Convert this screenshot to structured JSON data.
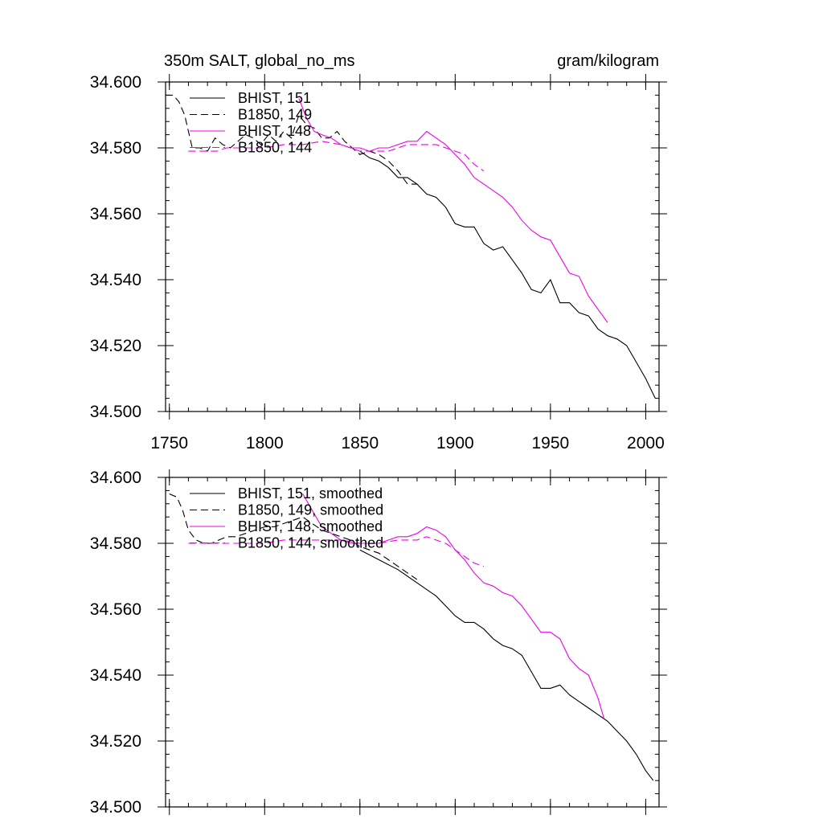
{
  "title_left": "350m SALT, global_no_ms",
  "title_right": "gram/kilogram",
  "colors": {
    "black": "#000000",
    "magenta": "#ee00ee"
  },
  "chart_data": [
    {
      "type": "line",
      "panel": "raw",
      "xlim": [
        1748,
        2007
      ],
      "ylim": [
        34.5,
        34.6
      ],
      "x_ticks": [
        1750,
        1800,
        1850,
        1900,
        1950,
        2000
      ],
      "x_tick_labels": [
        "1750",
        "1800",
        "1850",
        "1900",
        "1950",
        "2000"
      ],
      "y_ticks": [
        34.5,
        34.52,
        34.54,
        34.56,
        34.58,
        34.6
      ],
      "y_tick_labels": [
        "34.500",
        "34.520",
        "34.540",
        "34.560",
        "34.580",
        "34.600"
      ],
      "legend_position": "top-left",
      "series": [
        {
          "name": "BHIST, 151",
          "color": "#000000",
          "dash": "solid",
          "x": [
            1850,
            1855,
            1860,
            1865,
            1870,
            1875,
            1880,
            1885,
            1890,
            1895,
            1900,
            1905,
            1910,
            1915,
            1920,
            1925,
            1930,
            1935,
            1940,
            1945,
            1950,
            1955,
            1960,
            1965,
            1970,
            1975,
            1980,
            1985,
            1990,
            1995,
            2000,
            2005
          ],
          "y": [
            34.579,
            34.577,
            34.576,
            34.574,
            34.571,
            34.571,
            34.569,
            34.566,
            34.565,
            34.562,
            34.557,
            34.556,
            34.556,
            34.551,
            34.549,
            34.55,
            34.546,
            34.542,
            34.537,
            34.536,
            34.54,
            34.533,
            34.533,
            34.53,
            34.529,
            34.525,
            34.523,
            34.522,
            34.52,
            34.515,
            34.51,
            34.504
          ]
        },
        {
          "name": "B1850, 149",
          "color": "#000000",
          "dash": "dashed",
          "x": [
            1748,
            1752,
            1755,
            1758,
            1762,
            1766,
            1770,
            1774,
            1778,
            1782,
            1786,
            1790,
            1794,
            1798,
            1802,
            1806,
            1810,
            1814,
            1818,
            1822,
            1826,
            1830,
            1834,
            1838,
            1842,
            1846,
            1850,
            1855,
            1860,
            1865,
            1870,
            1875,
            1880
          ],
          "y": [
            34.596,
            34.596,
            34.594,
            34.59,
            34.58,
            34.58,
            34.579,
            34.583,
            34.581,
            34.58,
            34.582,
            34.584,
            34.583,
            34.581,
            34.584,
            34.582,
            34.585,
            34.583,
            34.59,
            34.587,
            34.586,
            34.583,
            34.583,
            34.585,
            34.582,
            34.58,
            34.578,
            34.579,
            34.578,
            34.576,
            34.573,
            34.569,
            34.569
          ]
        },
        {
          "name": "BHIST, 148",
          "color": "#ee00ee",
          "dash": "solid",
          "x": [
            1818,
            1822,
            1826,
            1830,
            1835,
            1840,
            1845,
            1850,
            1855,
            1860,
            1865,
            1870,
            1875,
            1880,
            1885,
            1890,
            1895,
            1900,
            1905,
            1910,
            1915,
            1920,
            1925,
            1930,
            1935,
            1940,
            1945,
            1950,
            1955,
            1960,
            1965,
            1970,
            1975,
            1980
          ],
          "y": [
            34.595,
            34.589,
            34.585,
            34.584,
            34.583,
            34.581,
            34.58,
            34.58,
            34.579,
            34.58,
            34.58,
            34.581,
            34.582,
            34.582,
            34.585,
            34.583,
            34.581,
            34.578,
            34.575,
            34.571,
            34.569,
            34.567,
            34.565,
            34.562,
            34.558,
            34.555,
            34.553,
            34.552,
            34.547,
            34.542,
            34.541,
            34.535,
            34.531,
            34.527
          ]
        },
        {
          "name": "B1850, 144",
          "color": "#ee00ee",
          "dash": "dashed",
          "x": [
            1760,
            1765,
            1770,
            1775,
            1780,
            1785,
            1790,
            1800,
            1810,
            1820,
            1830,
            1840,
            1845,
            1850,
            1855,
            1860,
            1865,
            1870,
            1875,
            1880,
            1885,
            1890,
            1895,
            1900,
            1905,
            1910,
            1915
          ],
          "y": [
            34.579,
            34.579,
            34.579,
            34.579,
            34.58,
            34.58,
            34.58,
            34.58,
            34.581,
            34.581,
            34.582,
            34.581,
            34.58,
            34.579,
            34.579,
            34.579,
            34.579,
            34.58,
            34.581,
            34.581,
            34.581,
            34.581,
            34.58,
            34.579,
            34.578,
            34.575,
            34.573
          ]
        }
      ]
    },
    {
      "type": "line",
      "panel": "smoothed",
      "xlim": [
        1748,
        2007
      ],
      "ylim": [
        34.5,
        34.6
      ],
      "x_ticks": [
        1750,
        1800,
        1850,
        1900,
        1950,
        2000
      ],
      "y_ticks": [
        34.5,
        34.52,
        34.54,
        34.56,
        34.58,
        34.6
      ],
      "y_tick_labels": [
        "34.500",
        "34.520",
        "34.540",
        "34.560",
        "34.580",
        "34.600"
      ],
      "legend_position": "top-left",
      "series": [
        {
          "name": "BHIST, 151, smoothed",
          "color": "#000000",
          "dash": "solid",
          "x": [
            1850,
            1860,
            1870,
            1880,
            1885,
            1890,
            1895,
            1900,
            1905,
            1910,
            1915,
            1920,
            1925,
            1930,
            1935,
            1940,
            1945,
            1950,
            1955,
            1960,
            1965,
            1970,
            1975,
            1980,
            1985,
            1990,
            1995,
            2000,
            2004
          ],
          "y": [
            34.578,
            34.575,
            34.572,
            34.568,
            34.566,
            34.564,
            34.561,
            34.558,
            34.556,
            34.556,
            34.554,
            34.551,
            34.549,
            34.548,
            34.546,
            34.541,
            34.536,
            34.536,
            34.537,
            34.534,
            34.532,
            34.53,
            34.528,
            34.526,
            34.523,
            34.52,
            34.516,
            34.511,
            34.508
          ]
        },
        {
          "name": "B1850, 149, smoothed",
          "color": "#000000",
          "dash": "dashed",
          "x": [
            1750,
            1754,
            1757,
            1760,
            1764,
            1768,
            1772,
            1776,
            1780,
            1785,
            1790,
            1795,
            1800,
            1805,
            1810,
            1815,
            1820,
            1825,
            1830,
            1835,
            1840,
            1845,
            1850,
            1855,
            1860,
            1865,
            1870,
            1875,
            1880
          ],
          "y": [
            34.595,
            34.594,
            34.59,
            34.584,
            34.581,
            34.58,
            34.58,
            34.581,
            34.582,
            34.582,
            34.583,
            34.584,
            34.585,
            34.585,
            34.586,
            34.587,
            34.588,
            34.586,
            34.584,
            34.583,
            34.582,
            34.581,
            34.579,
            34.578,
            34.577,
            34.575,
            34.573,
            34.571,
            34.569
          ]
        },
        {
          "name": "BHIST, 148, smoothed",
          "color": "#ee00ee",
          "dash": "solid",
          "x": [
            1820,
            1825,
            1830,
            1835,
            1840,
            1845,
            1850,
            1855,
            1860,
            1865,
            1870,
            1875,
            1880,
            1885,
            1890,
            1895,
            1900,
            1905,
            1910,
            1915,
            1920,
            1925,
            1930,
            1935,
            1940,
            1945,
            1950,
            1955,
            1960,
            1965,
            1970,
            1975,
            1978
          ],
          "y": [
            34.595,
            34.59,
            34.585,
            34.583,
            34.581,
            34.58,
            34.58,
            34.58,
            34.58,
            34.581,
            34.582,
            34.582,
            34.583,
            34.585,
            34.584,
            34.582,
            34.578,
            34.575,
            34.571,
            34.568,
            34.567,
            34.565,
            34.564,
            34.561,
            34.557,
            34.553,
            34.553,
            34.551,
            34.545,
            34.542,
            34.54,
            34.533,
            34.527
          ]
        },
        {
          "name": "B1850, 144, smoothed",
          "color": "#ee00ee",
          "dash": "dashed",
          "x": [
            1760,
            1770,
            1780,
            1790,
            1800,
            1810,
            1820,
            1830,
            1840,
            1850,
            1860,
            1870,
            1880,
            1885,
            1890,
            1895,
            1900,
            1905,
            1910,
            1915
          ],
          "y": [
            34.58,
            34.58,
            34.58,
            34.58,
            34.58,
            34.581,
            34.581,
            34.581,
            34.581,
            34.58,
            34.58,
            34.581,
            34.581,
            34.582,
            34.581,
            34.58,
            34.578,
            34.576,
            34.574,
            34.573
          ]
        }
      ]
    }
  ]
}
